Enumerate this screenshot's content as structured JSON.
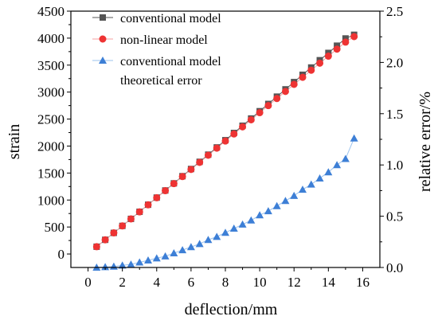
{
  "chart_data": {
    "type": "scatter",
    "xlabel": "deflection/mm",
    "ylabel": "strain",
    "y2label": "relative error/%",
    "xlim": [
      -1,
      17
    ],
    "ylim": [
      -250,
      4500
    ],
    "y2lim": [
      0,
      2.5
    ],
    "x_ticks": [
      0,
      2,
      4,
      6,
      8,
      10,
      12,
      14,
      16
    ],
    "y_ticks": [
      0,
      500,
      1000,
      1500,
      2000,
      2500,
      3000,
      3500,
      4000,
      4500
    ],
    "y2_ticks": [
      0.0,
      0.5,
      1.0,
      1.5,
      2.0,
      2.5
    ],
    "x_tick_labels": [
      "0",
      "2",
      "4",
      "6",
      "8",
      "10",
      "12",
      "14",
      "16"
    ],
    "y_tick_labels": [
      "0",
      "500",
      "1000",
      "1500",
      "2000",
      "2500",
      "3000",
      "3500",
      "4000",
      "4500"
    ],
    "y2_tick_labels": [
      "0.0",
      "0.5",
      "1.0",
      "1.5",
      "2.0",
      "2.5"
    ],
    "x": [
      0.5,
      1.0,
      1.5,
      2.0,
      2.5,
      3.0,
      3.5,
      4.0,
      4.5,
      5.0,
      5.5,
      6.0,
      6.5,
      7.0,
      7.5,
      8.0,
      8.5,
      9.0,
      9.5,
      10.0,
      10.5,
      11.0,
      11.5,
      12.0,
      12.5,
      13.0,
      13.5,
      14.0,
      14.5,
      15.0,
      15.5
    ],
    "series": [
      {
        "name": "conventional model",
        "axis": "left",
        "marker": "square",
        "color": "#555555",
        "line_color": "#555555",
        "values": [
          135,
          263,
          391,
          521,
          651,
          782,
          913,
          1045,
          1177,
          1309,
          1442,
          1575,
          1708,
          1841,
          1975,
          2109,
          2243,
          2377,
          2511,
          2646,
          2781,
          2916,
          3051,
          3186,
          3321,
          3456,
          3591,
          3726,
          3860,
          3994,
          4062
        ]
      },
      {
        "name": "non-linear model",
        "axis": "left",
        "marker": "circle",
        "color": "#ee3333",
        "line_color": "#f4a0a0",
        "values": [
          135,
          263,
          391,
          520,
          650,
          780,
          911,
          1042,
          1173,
          1304,
          1435,
          1567,
          1698,
          1830,
          1961,
          2093,
          2224,
          2356,
          2487,
          2619,
          2750,
          2881,
          3012,
          3143,
          3274,
          3405,
          3536,
          3666,
          3796,
          3926,
          4028
        ]
      },
      {
        "name": "conventional model theoretical error",
        "axis": "right",
        "marker": "triangle",
        "color": "#3d7fd6",
        "line_color": "#9cc3ee",
        "values": [
          0.0,
          0.005,
          0.01,
          0.02,
          0.03,
          0.05,
          0.07,
          0.09,
          0.11,
          0.14,
          0.17,
          0.2,
          0.23,
          0.27,
          0.3,
          0.34,
          0.38,
          0.42,
          0.46,
          0.51,
          0.55,
          0.6,
          0.65,
          0.7,
          0.76,
          0.81,
          0.87,
          0.93,
          1.0,
          1.06,
          1.26
        ]
      }
    ],
    "legend": {
      "placement": "top-left",
      "entries": [
        {
          "text": "conventional model"
        },
        {
          "text": "non-linear model"
        },
        {
          "text": "conventional model"
        },
        {
          "text": "theoretical error"
        }
      ]
    },
    "grid": false
  }
}
